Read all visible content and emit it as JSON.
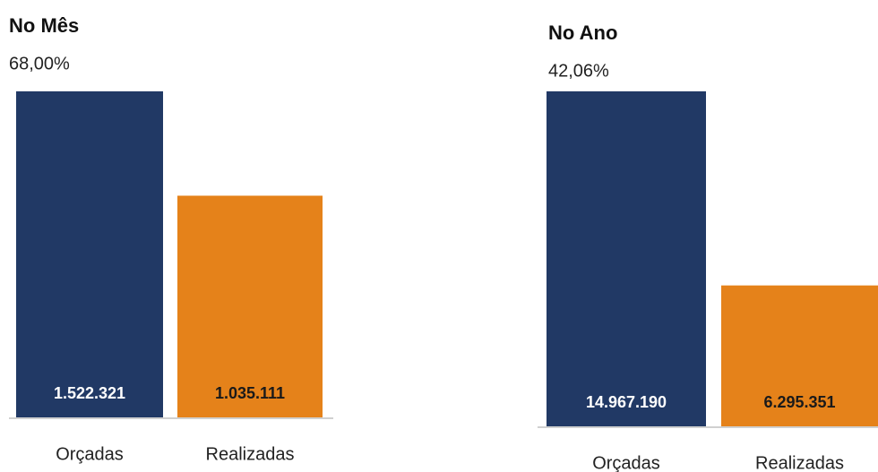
{
  "chart_data": [
    {
      "type": "bar",
      "title": "No Mês",
      "subtitle": "68,00%",
      "categories": [
        "Orçadas",
        "Realizadas"
      ],
      "values": [
        1522321,
        1035111
      ],
      "value_labels": [
        "1.522.321",
        "1.035.111"
      ],
      "colors": [
        "#213965",
        "#e5821a"
      ]
    },
    {
      "type": "bar",
      "title": "No Ano",
      "subtitle": "42,06%",
      "categories": [
        "Orçadas",
        "Realizadas"
      ],
      "values": [
        14967190,
        6295351
      ],
      "value_labels": [
        "14.967.190",
        "6.295.351"
      ],
      "colors": [
        "#213965",
        "#e5821a"
      ]
    }
  ]
}
